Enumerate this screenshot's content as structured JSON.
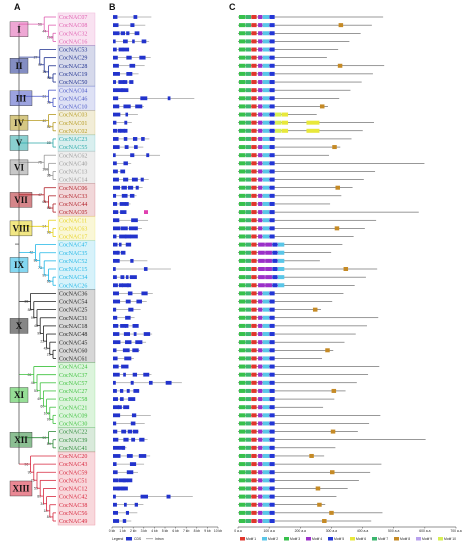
{
  "panel_labels": [
    "A",
    "B",
    "C"
  ],
  "genes": [
    "CocNAC07",
    "CocNAC08",
    "CocNAC32",
    "CocNAC16",
    "CocNAC53",
    "CocNAC29",
    "CocNAC28",
    "CocNAC19",
    "CocNAC50",
    "CocNAC04",
    "CocNAC46",
    "CocNAC10",
    "CocNAC03",
    "CocNAC01",
    "CocNAC02",
    "CocNAC23",
    "CocNAC55",
    "CocNAC62",
    "CocNAC40",
    "CocNAC13",
    "CocNAC14",
    "CocNAC06",
    "CocNAC33",
    "CocNAC44",
    "CocNAC05",
    "CocNAC11",
    "CocNAC63",
    "CocNAC17",
    "CocNAC47",
    "CocNAC35",
    "CocNAC52",
    "CocNAC15",
    "CocNAC34",
    "CocNAC26",
    "CocNAC36",
    "CocNAC54",
    "CocNAC25",
    "CocNAC31",
    "CocNAC18",
    "CocNAC48",
    "CocNAC45",
    "CocNAC60",
    "CocNAC61",
    "CocNAC24",
    "CocNAC37",
    "CocNAC57",
    "CocNAC27",
    "CocNAC58",
    "CocNAC21",
    "CocNAC09",
    "CocNAC30",
    "CocNAC22",
    "CocNAC39",
    "CocNAC41",
    "CocNAC20",
    "CocNAC43",
    "CocNAC59",
    "CocNAC51",
    "CocNAC12",
    "CocNAC42",
    "CocNAC38",
    "CocNAC56",
    "CocNAC49"
  ],
  "groups": [
    {
      "label": "I",
      "start": 0,
      "end": 4,
      "color": "#e05fb0"
    },
    {
      "label": "II",
      "start": 4,
      "end": 9,
      "color": "#1d2f8f"
    },
    {
      "label": "III",
      "start": 9,
      "end": 12,
      "color": "#4a58c7"
    },
    {
      "label": "IV",
      "start": 12,
      "end": 15,
      "color": "#b59a1f"
    },
    {
      "label": "V",
      "start": 15,
      "end": 17,
      "color": "#2aa9a9"
    },
    {
      "label": "VI",
      "start": 17,
      "end": 21,
      "color": "#9a9a9a"
    },
    {
      "label": "VII",
      "start": 21,
      "end": 25,
      "color": "#b2222a"
    },
    {
      "label": "VIII",
      "start": 25,
      "end": 28,
      "color": "#e6d21f"
    },
    {
      "label": "IX",
      "start": 28,
      "end": 34,
      "color": "#1fb6e6"
    },
    {
      "label": "X",
      "start": 34,
      "end": 43,
      "color": "#222222"
    },
    {
      "label": "XI",
      "start": 43,
      "end": 51,
      "color": "#3fc23f"
    },
    {
      "label": "XII",
      "start": 51,
      "end": 54,
      "color": "#2e8b3a"
    },
    {
      "label": "XIII",
      "start": 54,
      "end": 63,
      "color": "#d7263d"
    }
  ],
  "bootstrap_values": [
    "100",
    "44",
    "56",
    "98",
    "16",
    "97",
    "27",
    "36",
    "31",
    "52",
    "40",
    "88",
    "35",
    "100",
    "75",
    "68",
    "65",
    "47",
    "98",
    "94",
    "65",
    "99",
    "73",
    "86",
    "42",
    "25",
    "42",
    "22",
    "99",
    "48",
    "99",
    "88",
    "38",
    "99",
    "100",
    "60",
    "40",
    "53",
    "46",
    "81",
    "84",
    "99",
    "84",
    "18",
    "34",
    "80",
    "59",
    "29",
    "95",
    "96",
    "94",
    "90",
    "66"
  ],
  "structure": {
    "axis_ticks": [
      "0 kb",
      "1 kb",
      "2 kb",
      "3 kb",
      "4 kb",
      "5 kb",
      "6 kb",
      "7 kb",
      "8 kb",
      "9 kb",
      "10 kb"
    ],
    "legend": [
      "Legend",
      "CDS",
      "Intron"
    ],
    "cds_color": "#2233cc"
  },
  "motifs": {
    "axis_ticks": [
      "0 a.a",
      "100 a.a",
      "200 a.a",
      "300 a.a",
      "400 a.a",
      "500 a.a",
      "600 a.a",
      "700 a.a"
    ],
    "legend": [
      {
        "name": "Motif 1",
        "color": "#e0362c"
      },
      {
        "name": "Motif 2",
        "color": "#59c6e8"
      },
      {
        "name": "Motif 3",
        "color": "#37c14b"
      },
      {
        "name": "Motif 4",
        "color": "#9b2fc9"
      },
      {
        "name": "Motif 5",
        "color": "#2236d6"
      },
      {
        "name": "Motif 6",
        "color": "#e8e83a"
      },
      {
        "name": "Motif 7",
        "color": "#3bb66e"
      },
      {
        "name": "Motif 8",
        "color": "#c58a25"
      },
      {
        "name": "Motif 9",
        "color": "#b8a0ee"
      },
      {
        "name": "Motif 10",
        "color": "#d7ef55"
      }
    ]
  }
}
